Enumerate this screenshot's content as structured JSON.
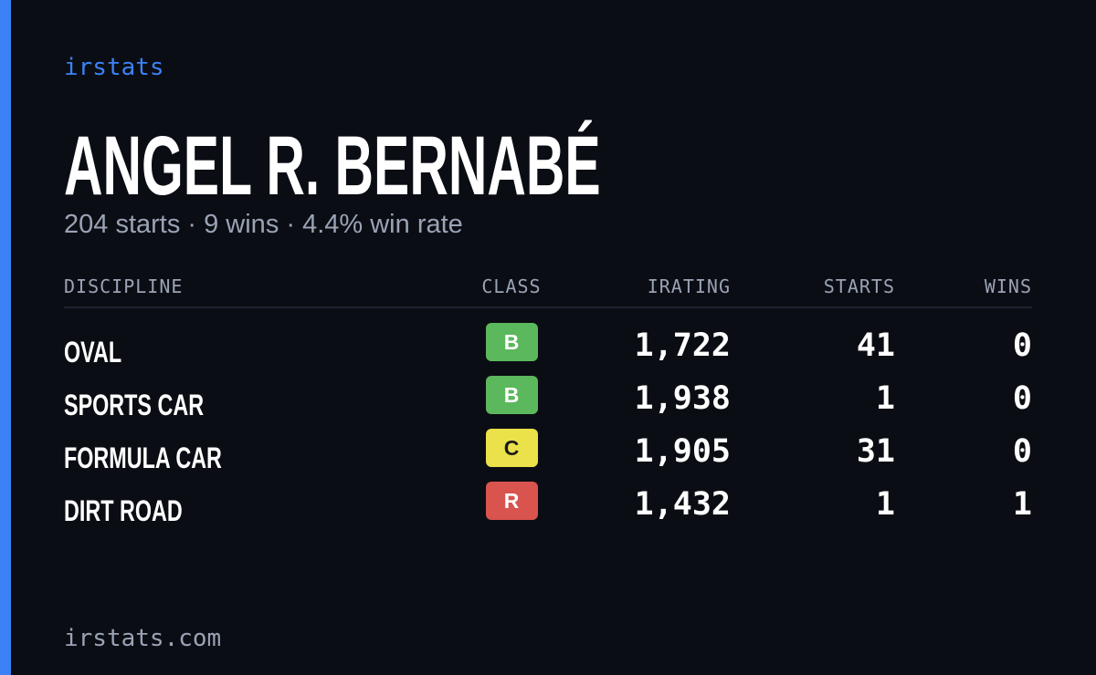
{
  "brand": "irstats",
  "profile": {
    "name": "ANGEL R. BERNABÉ",
    "summary": "204 starts · 9 wins · 4.4% win rate"
  },
  "table": {
    "headers": [
      "DISCIPLINE",
      "CLASS",
      "IRATING",
      "STARTS",
      "WINS"
    ],
    "rows": [
      {
        "discipline": "OVAL",
        "class": "B",
        "class_color": "#5cb85c",
        "irating": "1,722",
        "starts": "41",
        "wins": "0"
      },
      {
        "discipline": "SPORTS CAR",
        "class": "B",
        "class_color": "#5cb85c",
        "irating": "1,938",
        "starts": "1",
        "wins": "0"
      },
      {
        "discipline": "FORMULA CAR",
        "class": "C",
        "class_color": "#ebe14a",
        "irating": "1,905",
        "starts": "31",
        "wins": "0"
      },
      {
        "discipline": "DIRT ROAD",
        "class": "R",
        "class_color": "#d9534f",
        "irating": "1,432",
        "starts": "1",
        "wins": "1"
      }
    ]
  },
  "footer": "irstats.com"
}
